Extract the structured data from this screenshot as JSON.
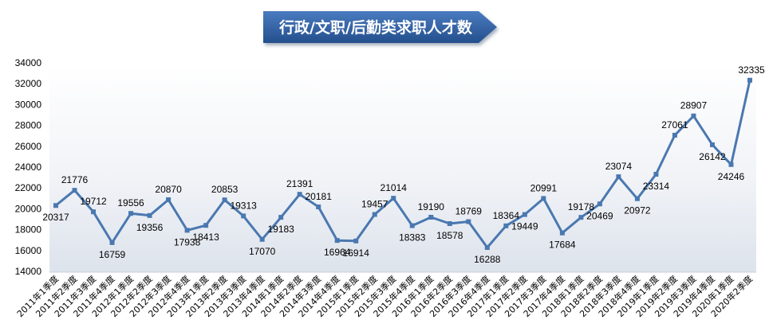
{
  "chart_data": {
    "type": "line",
    "title": "行政/文职/后勤类求职人才数",
    "xlabel": "",
    "ylabel": "",
    "ylim": [
      14000,
      34000
    ],
    "yticks": [
      14000,
      16000,
      18000,
      20000,
      22000,
      24000,
      26000,
      28000,
      30000,
      32000,
      34000
    ],
    "grid": false,
    "legend": "none",
    "colors": {
      "line": "#4a78b0",
      "title_bg": "#2f5d9a",
      "area_top": "#dfe5ee"
    },
    "categories": [
      "2011年1季度",
      "2011年2季度",
      "2011年3季度",
      "2011年4季度",
      "2012年1季度",
      "2012年2季度",
      "2012年3季度",
      "2012年4季度",
      "2013年1季度",
      "2013年2季度",
      "2013年3季度",
      "2013年4季度",
      "2014年1季度",
      "2014年2季度",
      "2014年3季度",
      "2014年4季度",
      "2015年1季度",
      "2015年2季度",
      "2015年3季度",
      "2015年4季度",
      "2016年1季度",
      "2016年2季度",
      "2016年3季度",
      "2016年4季度",
      "2017年1季度",
      "2017年2季度",
      "2017年3季度",
      "2017年4季度",
      "2018年1季度",
      "2018年2季度",
      "2018年3季度",
      "2018年4季度",
      "2019年1季度",
      "2019年2季度",
      "2019年3季度",
      "2019年4季度",
      "2020年1季度",
      "2020年2季度"
    ],
    "series": [
      {
        "values": [
          20317,
          21776,
          19712,
          16759,
          19556,
          19356,
          20870,
          17938,
          18413,
          20853,
          19313,
          17070,
          19183,
          21391,
          20181,
          16964,
          16914,
          19457,
          21014,
          18383,
          19190,
          18578,
          18769,
          16288,
          18364,
          19449,
          20991,
          17684,
          19178,
          20469,
          23074,
          20972,
          23314,
          27061,
          28907,
          26142,
          24246,
          32335
        ],
        "labels": [
          "20317",
          "21776",
          "19712",
          "16759",
          "19556",
          "19356",
          "20870",
          "17938",
          "18413",
          "20853",
          "19313",
          "17070",
          "19183",
          "21391",
          "20181",
          "16964",
          "16914",
          "19457",
          "21014",
          "18383",
          "19190",
          "18578",
          "18769",
          "16288",
          "18364",
          "19449",
          "20991",
          "17684",
          "19178",
          "20469",
          "23074",
          "20972",
          "23314",
          "27061",
          "28907",
          "26142",
          "24246",
          "32335"
        ]
      }
    ]
  }
}
